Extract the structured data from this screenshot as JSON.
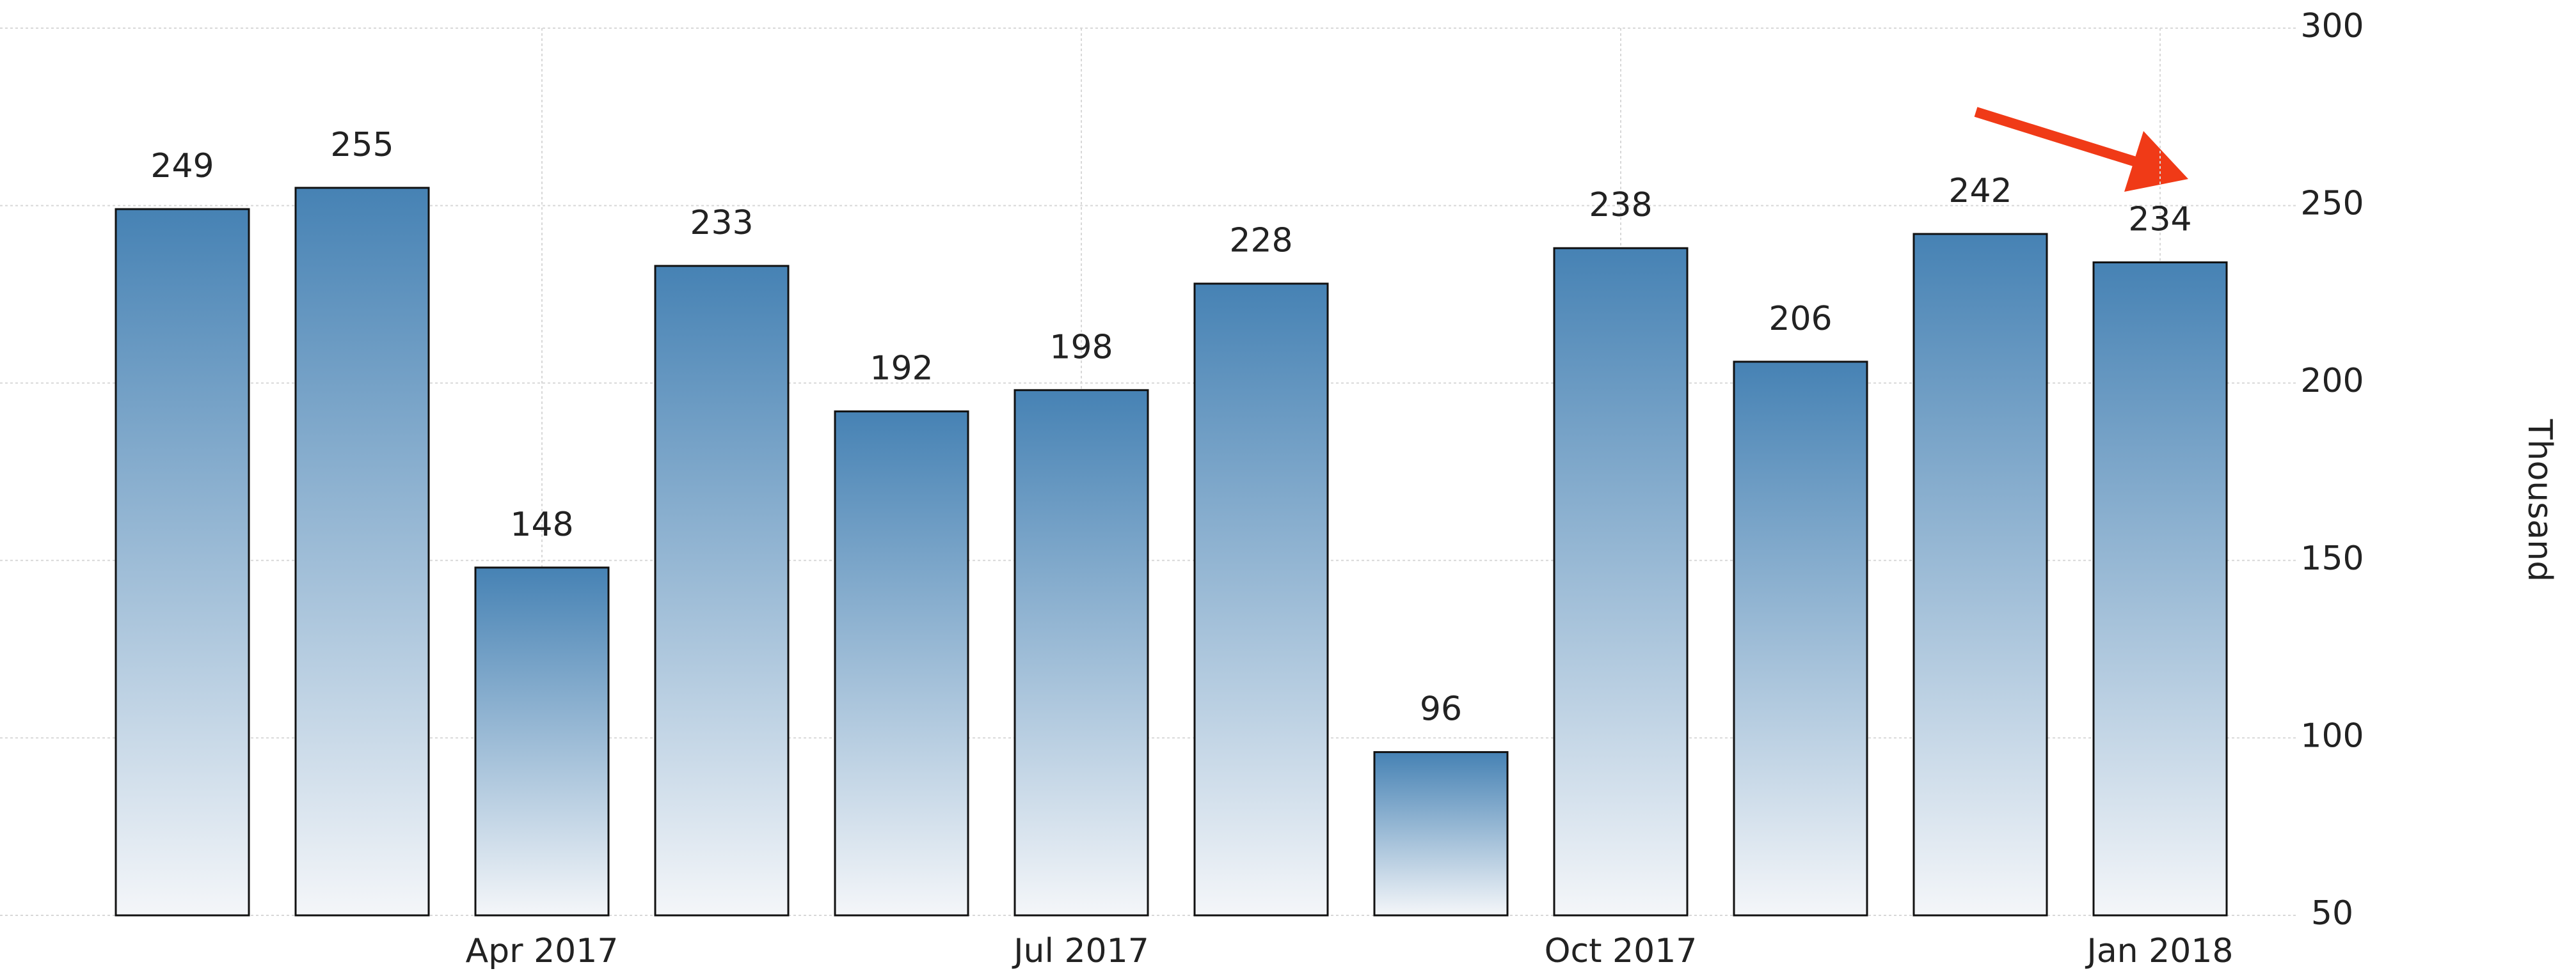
{
  "chart_data": {
    "type": "bar",
    "categories": [
      null,
      null,
      "Apr 2017",
      null,
      null,
      "Jul 2017",
      null,
      null,
      "Oct 2017",
      null,
      null,
      "Jan 2018"
    ],
    "values": [
      249,
      255,
      148,
      233,
      192,
      198,
      228,
      96,
      238,
      206,
      242,
      234
    ],
    "color": "#4682b4",
    "ylabel": "Thousand",
    "ylim": [
      50,
      300
    ],
    "yticks": [
      50,
      100,
      150,
      200,
      250,
      300
    ],
    "grid": true
  }
}
